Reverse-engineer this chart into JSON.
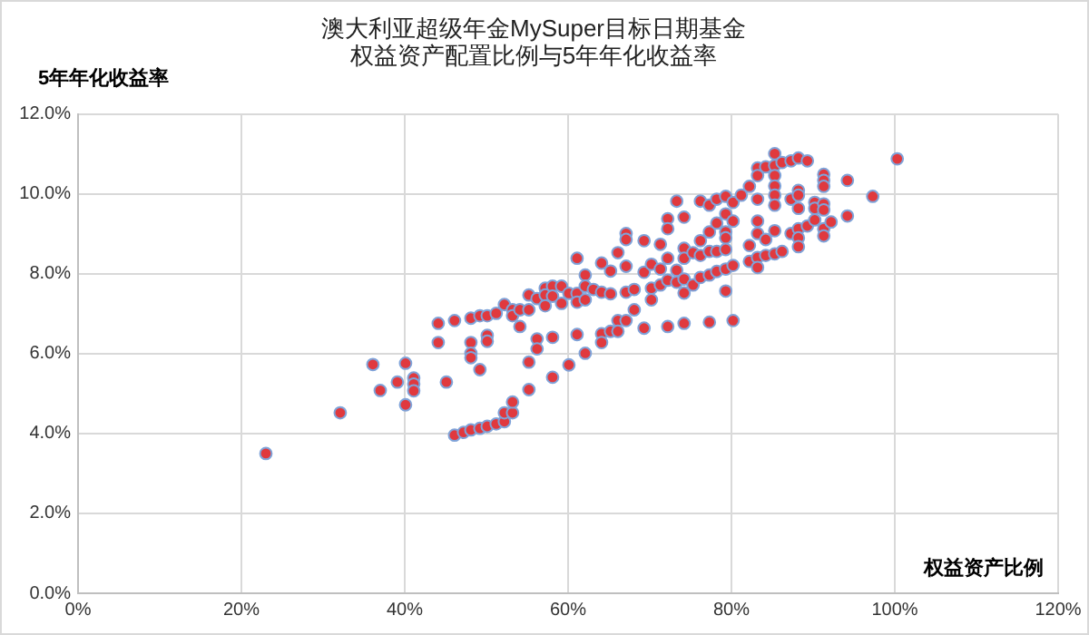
{
  "chart_data": {
    "type": "scatter",
    "title": [
      "澳大利亚超级年金MySuper目标日期基金",
      "权益资产配置比例与5年年化收益率"
    ],
    "xlabel": "权益资产比例",
    "ylabel": "5年年化收益率",
    "xlim": [
      0,
      120
    ],
    "ylim": [
      0,
      12
    ],
    "xticks": [
      {
        "value": 0,
        "label": "0%"
      },
      {
        "value": 20,
        "label": "20%"
      },
      {
        "value": 40,
        "label": "40%"
      },
      {
        "value": 60,
        "label": "60%"
      },
      {
        "value": 80,
        "label": "80%"
      },
      {
        "value": 100,
        "label": "100%"
      },
      {
        "value": 120,
        "label": "120%"
      }
    ],
    "yticks": [
      {
        "value": 0,
        "label": "0.0%"
      },
      {
        "value": 2,
        "label": "2.0%"
      },
      {
        "value": 4,
        "label": "4.0%"
      },
      {
        "value": 6,
        "label": "6.0%"
      },
      {
        "value": 8,
        "label": "8.0%"
      },
      {
        "value": 10,
        "label": "10.0%"
      },
      {
        "value": 12,
        "label": "12.0%"
      }
    ],
    "grid": true,
    "marker": "circle",
    "legend": false,
    "series": [
      {
        "color": "#e0393e",
        "x": [
          23.0,
          32.1,
          36.1,
          37.0,
          39.1,
          40.1,
          40.1,
          41.1,
          41.1,
          41.1,
          44.1,
          44.1,
          45.1,
          46.1,
          46.1,
          47.2,
          48.1,
          49.2,
          50.1,
          51.2,
          52.2,
          52.2,
          53.2,
          53.2,
          48.1,
          48.1,
          48.1,
          48.1,
          49.2,
          49.2,
          50.1,
          50.1,
          50.1,
          51.2,
          52.2,
          53.2,
          53.2,
          54.1,
          54.1,
          55.2,
          55.2,
          55.2,
          55.2,
          56.2,
          56.2,
          56.2,
          57.2,
          57.2,
          57.2,
          58.1,
          58.1,
          58.1,
          58.1,
          59.2,
          59.2,
          60.1,
          60.1,
          61.1,
          61.1,
          61.1,
          61.1,
          62.1,
          62.1,
          62.1,
          62.1,
          63.1,
          64.1,
          64.1,
          64.1,
          64.1,
          65.2,
          65.2,
          65.2,
          66.1,
          66.1,
          66.1,
          67.1,
          67.1,
          67.1,
          67.1,
          67.1,
          68.1,
          68.1,
          69.3,
          69.3,
          69.3,
          70.2,
          70.2,
          70.2,
          71.3,
          71.3,
          71.3,
          72.2,
          72.2,
          72.2,
          72.2,
          72.2,
          73.3,
          73.3,
          73.3,
          74.2,
          74.2,
          74.2,
          74.2,
          74.2,
          74.2,
          75.3,
          75.3,
          76.2,
          76.2,
          76.2,
          76.2,
          77.3,
          77.3,
          77.3,
          77.3,
          77.3,
          78.2,
          78.2,
          78.2,
          78.2,
          79.3,
          79.3,
          79.3,
          79.3,
          79.3,
          79.3,
          79.3,
          80.2,
          80.2,
          80.2,
          80.2,
          81.2,
          82.2,
          82.2,
          82.2,
          83.2,
          83.2,
          83.2,
          83.2,
          83.2,
          83.2,
          83.2,
          84.2,
          84.2,
          84.2,
          85.3,
          85.3,
          85.3,
          85.3,
          85.3,
          85.3,
          85.3,
          85.3,
          86.2,
          86.2,
          87.3,
          87.3,
          87.3,
          88.2,
          88.2,
          88.2,
          88.2,
          88.2,
          88.2,
          88.2,
          89.3,
          89.3,
          90.2,
          90.2,
          90.2,
          91.3,
          91.3,
          91.3,
          91.3,
          91.3,
          91.3,
          91.3,
          92.2,
          94.2,
          94.2,
          97.3,
          100.3
        ],
        "values": [
          3.5,
          4.52,
          5.73,
          5.08,
          5.29,
          5.76,
          4.72,
          5.39,
          5.24,
          5.07,
          6.76,
          6.28,
          5.29,
          6.83,
          3.96,
          4.03,
          4.09,
          4.13,
          4.18,
          4.24,
          4.3,
          4.52,
          4.52,
          4.79,
          6.89,
          6.28,
          6.01,
          5.9,
          6.95,
          5.6,
          6.95,
          6.46,
          6.31,
          7.01,
          7.23,
          7.1,
          6.95,
          7.1,
          6.68,
          7.47,
          7.1,
          5.79,
          5.1,
          7.38,
          6.37,
          6.12,
          7.64,
          7.47,
          7.2,
          7.69,
          7.44,
          6.41,
          5.41,
          7.69,
          7.26,
          7.51,
          5.72,
          8.39,
          7.51,
          7.29,
          6.48,
          7.97,
          7.69,
          7.35,
          6.01,
          7.61,
          8.27,
          7.54,
          6.5,
          6.28,
          8.07,
          7.5,
          6.56,
          8.53,
          6.83,
          6.56,
          9.01,
          8.86,
          8.19,
          7.54,
          6.83,
          7.61,
          7.1,
          8.83,
          8.04,
          6.64,
          8.24,
          7.64,
          7.35,
          8.74,
          8.12,
          7.72,
          9.38,
          9.13,
          8.39,
          7.84,
          6.68,
          9.82,
          8.09,
          7.79,
          9.42,
          8.64,
          8.39,
          7.87,
          7.52,
          6.76,
          8.53,
          7.72,
          9.82,
          8.83,
          8.46,
          7.91,
          9.72,
          9.05,
          8.56,
          7.97,
          6.79,
          9.87,
          9.27,
          8.56,
          8.06,
          9.94,
          9.5,
          9.05,
          8.9,
          8.61,
          8.12,
          7.57,
          9.79,
          9.32,
          8.21,
          6.83,
          9.97,
          10.19,
          8.71,
          8.31,
          10.65,
          10.46,
          9.87,
          9.32,
          9.01,
          8.41,
          8.16,
          10.68,
          8.86,
          8.46,
          11.01,
          10.71,
          10.46,
          10.2,
          9.97,
          9.72,
          9.08,
          8.5,
          10.79,
          8.56,
          10.83,
          9.87,
          9.01,
          10.9,
          10.09,
          9.97,
          9.64,
          9.13,
          8.9,
          8.68,
          10.83,
          9.2,
          9.79,
          9.64,
          9.35,
          10.49,
          10.34,
          10.19,
          9.75,
          9.6,
          9.13,
          8.95,
          9.3,
          10.34,
          9.45,
          9.94,
          10.88
        ]
      }
    ]
  }
}
